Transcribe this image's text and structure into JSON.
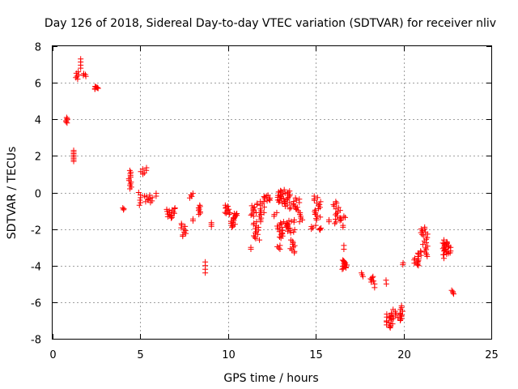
{
  "chart_data": {
    "type": "scatter",
    "title": "Day 126 of 2018, Sidereal Day-to-day VTEC variation (SDTVAR) for receiver nliv",
    "xlabel": "GPS time / hours",
    "ylabel": "SDTVAR / TECUs",
    "xlim": [
      0,
      25
    ],
    "ylim": [
      -8,
      8
    ],
    "xticks": [
      0,
      5,
      10,
      15,
      20,
      25
    ],
    "yticks": [
      -8,
      -6,
      -4,
      -2,
      0,
      2,
      4,
      6,
      8
    ],
    "grid": true,
    "marker": "+",
    "color": "#ff0000",
    "series": [
      {
        "name": "SDTVAR",
        "clusters": [
          {
            "x": [
              0.75,
              0.85
            ],
            "y": [
              3.8,
              4.1
            ],
            "n": 6
          },
          {
            "x": 1.2,
            "y": [
              1.7,
              2.3
            ],
            "n": 8
          },
          {
            "x": [
              1.3,
              1.5
            ],
            "y": [
              6.2,
              6.6
            ],
            "n": 6
          },
          {
            "x": 1.6,
            "y": [
              6.8,
              7.3
            ],
            "n": 4
          },
          {
            "x": [
              1.75,
              1.9
            ],
            "y": [
              6.35,
              6.5
            ],
            "n": 4
          },
          {
            "x": [
              2.4,
              2.6
            ],
            "y": [
              5.65,
              5.8
            ],
            "n": 8
          },
          {
            "x": [
              3.95,
              4.1
            ],
            "y": [
              -0.95,
              -0.85
            ],
            "n": 3
          },
          {
            "x": [
              4.3,
              4.5
            ],
            "y": [
              0.2,
              1.2
            ],
            "n": 12
          },
          {
            "x": [
              4.9,
              5.05
            ],
            "y": [
              -0.7,
              0.0
            ],
            "n": 6
          },
          {
            "x": [
              5.0,
              5.4
            ],
            "y": [
              1.0,
              1.35
            ],
            "n": 6
          },
          {
            "x": [
              5.2,
              5.7
            ],
            "y": [
              -0.55,
              -0.15
            ],
            "n": 10
          },
          {
            "x": 5.9,
            "y": [
              -0.2,
              -0.05
            ],
            "n": 2
          },
          {
            "x": [
              6.5,
              7.0
            ],
            "y": [
              -1.4,
              -0.85
            ],
            "n": 16
          },
          {
            "x": [
              7.3,
              7.6
            ],
            "y": [
              -2.4,
              -1.7
            ],
            "n": 10
          },
          {
            "x": [
              7.8,
              8.0
            ],
            "y": [
              -0.3,
              -0.05
            ],
            "n": 4
          },
          {
            "x": 8.0,
            "y": [
              -1.55,
              -1.45
            ],
            "n": 2
          },
          {
            "x": [
              8.3,
              8.5
            ],
            "y": [
              -1.2,
              -0.7
            ],
            "n": 8
          },
          {
            "x": 8.7,
            "y": [
              -4.4,
              -3.8
            ],
            "n": 4
          },
          {
            "x": 9.05,
            "y": [
              -1.85,
              -1.65
            ],
            "n": 3
          },
          {
            "x": [
              9.8,
              10.1
            ],
            "y": [
              -1.2,
              -0.7
            ],
            "n": 10
          },
          {
            "x": [
              10.1,
              10.5
            ],
            "y": [
              -1.9,
              -1.1
            ],
            "n": 16
          },
          {
            "x": 10.5,
            "y": [
              -1.25,
              -1.15
            ],
            "n": 2
          },
          {
            "x": 11.3,
            "y": [
              -3.1,
              -3.0
            ],
            "n": 2
          },
          {
            "x": [
              11.3,
              11.7
            ],
            "y": [
              -1.3,
              -0.6
            ],
            "n": 12
          },
          {
            "x": [
              11.4,
              11.8
            ],
            "y": [
              -2.6,
              -1.6
            ],
            "n": 14
          },
          {
            "x": [
              11.7,
              11.9
            ],
            "y": [
              -1.6,
              -1.1
            ],
            "n": 6
          },
          {
            "x": [
              11.8,
              12.1
            ],
            "y": [
              -1.2,
              -0.5
            ],
            "n": 8
          },
          {
            "x": [
              12.0,
              12.4
            ],
            "y": [
              -0.5,
              -0.15
            ],
            "n": 10
          },
          {
            "x": [
              12.6,
              12.8
            ],
            "y": [
              -1.3,
              -1.1
            ],
            "n": 3
          },
          {
            "x": [
              12.8,
              13.2
            ],
            "y": [
              -2.5,
              -1.6
            ],
            "n": 16
          },
          {
            "x": [
              12.8,
              13.3
            ],
            "y": [
              -0.6,
              0.1
            ],
            "n": 20
          },
          {
            "x": [
              12.8,
              13.0
            ],
            "y": [
              -3.1,
              -2.9
            ],
            "n": 4
          },
          {
            "x": [
              13.2,
              13.6
            ],
            "y": [
              -0.9,
              0.15
            ],
            "n": 16
          },
          {
            "x": [
              13.3,
              13.8
            ],
            "y": [
              -2.2,
              -1.5
            ],
            "n": 18
          },
          {
            "x": [
              13.5,
              13.8
            ],
            "y": [
              -3.3,
              -2.6
            ],
            "n": 10
          },
          {
            "x": [
              13.7,
              14.1
            ],
            "y": [
              -1.0,
              -0.3
            ],
            "n": 12
          },
          {
            "x": [
              14.0,
              14.3
            ],
            "y": [
              -1.6,
              -1.1
            ],
            "n": 6
          },
          {
            "x": [
              14.7,
              15.0
            ],
            "y": [
              -2.0,
              -1.8
            ],
            "n": 4
          },
          {
            "x": [
              14.9,
              15.3
            ],
            "y": [
              -1.5,
              -0.2
            ],
            "n": 18
          },
          {
            "x": [
              15.0,
              15.4
            ],
            "y": [
              -2.05,
              -1.95
            ],
            "n": 4
          },
          {
            "x": 15.75,
            "y": [
              -1.6,
              -1.5
            ],
            "n": 2
          },
          {
            "x": [
              16.0,
              16.4
            ],
            "y": [
              -1.7,
              -0.5
            ],
            "n": 16
          },
          {
            "x": [
              16.4,
              16.7
            ],
            "y": [
              -1.5,
              -1.3
            ],
            "n": 4
          },
          {
            "x": 16.55,
            "y": [
              -1.9,
              -1.8
            ],
            "n": 2
          },
          {
            "x": [
              16.5,
              16.8
            ],
            "y": [
              -4.2,
              -3.7
            ],
            "n": 14
          },
          {
            "x": 16.6,
            "y": [
              -3.1,
              -2.9
            ],
            "n": 2
          },
          {
            "x": [
              17.6,
              17.7
            ],
            "y": [
              -4.6,
              -4.4
            ],
            "n": 3
          },
          {
            "x": [
              18.1,
              18.4
            ],
            "y": [
              -4.9,
              -4.6
            ],
            "n": 6
          },
          {
            "x": 18.35,
            "y": [
              -5.2,
              -5.0
            ],
            "n": 2
          },
          {
            "x": [
              18.9,
              19.05
            ],
            "y": [
              -5.0,
              -4.8
            ],
            "n": 2
          },
          {
            "x": [
              19.0,
              19.4
            ],
            "y": [
              -7.4,
              -6.6
            ],
            "n": 16
          },
          {
            "x": [
              19.4,
              19.6
            ],
            "y": [
              -6.9,
              -6.4
            ],
            "n": 6
          },
          {
            "x": [
              19.6,
              19.9
            ],
            "y": [
              -7.0,
              -6.6
            ],
            "n": 8
          },
          {
            "x": [
              19.8,
              20.0
            ],
            "y": [
              -6.5,
              -6.2
            ],
            "n": 4
          },
          {
            "x": [
              19.95,
              20.05
            ],
            "y": [
              -3.95,
              -3.85
            ],
            "n": 2
          },
          {
            "x": [
              20.6,
              20.9
            ],
            "y": [
              -4.0,
              -3.6
            ],
            "n": 10
          },
          {
            "x": [
              20.8,
              21.1
            ],
            "y": [
              -3.5,
              -3.2
            ],
            "n": 6
          },
          {
            "x": [
              20.9,
              21.1
            ],
            "y": [
              -2.3,
              -2.0
            ],
            "n": 4
          },
          {
            "x": [
              21.1,
              21.4
            ],
            "y": [
              -3.5,
              -1.9
            ],
            "n": 18
          },
          {
            "x": 22.3,
            "y": [
              -3.6,
              -2.6
            ],
            "n": 6
          },
          {
            "x": [
              22.2,
              22.7
            ],
            "y": [
              -3.4,
              -2.7
            ],
            "n": 22
          },
          {
            "x": [
              22.7,
              22.9
            ],
            "y": [
              -5.55,
              -5.35
            ],
            "n": 4
          }
        ]
      }
    ]
  }
}
